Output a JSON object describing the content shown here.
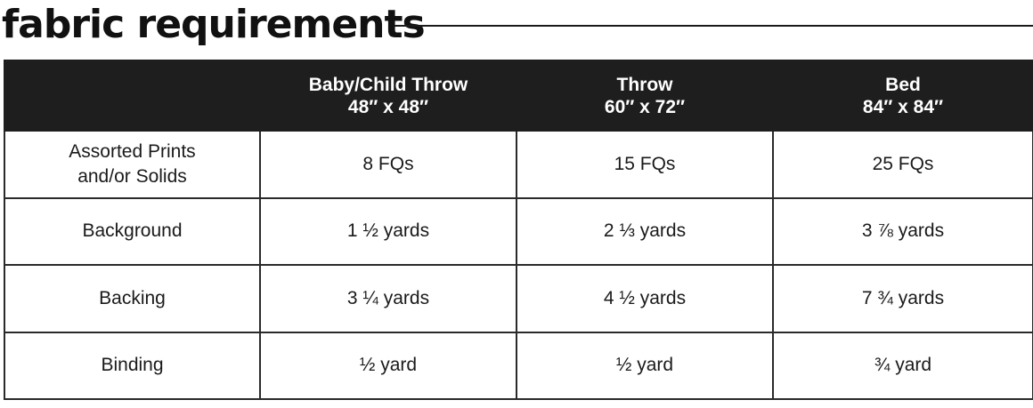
{
  "title": "fabric requirements",
  "columns": [
    {
      "name": "",
      "size": ""
    },
    {
      "name": "Baby/Child Throw",
      "size": "48″ x 48″"
    },
    {
      "name": "Throw",
      "size": "60″ x 72″"
    },
    {
      "name": "Bed",
      "size": "84″ x 84″"
    }
  ],
  "rows": [
    {
      "label_lines": [
        "Assorted Prints",
        "and/or Solids"
      ],
      "values": [
        "8 FQs",
        "15 FQs",
        "25 FQs"
      ]
    },
    {
      "label_lines": [
        "Background"
      ],
      "values": [
        "1 ½ yards",
        "2 ⅓ yards",
        "3 ⅞ yards"
      ]
    },
    {
      "label_lines": [
        "Backing"
      ],
      "values": [
        "3 ¼ yards",
        "4 ½ yards",
        "7 ¾ yards"
      ]
    },
    {
      "label_lines": [
        "Binding"
      ],
      "values": [
        "½ yard",
        "½ yard",
        "¾ yard"
      ]
    }
  ],
  "colors": {
    "header_bg": "#1e1e1e",
    "header_text": "#ffffff",
    "border": "#2a2a2a"
  }
}
